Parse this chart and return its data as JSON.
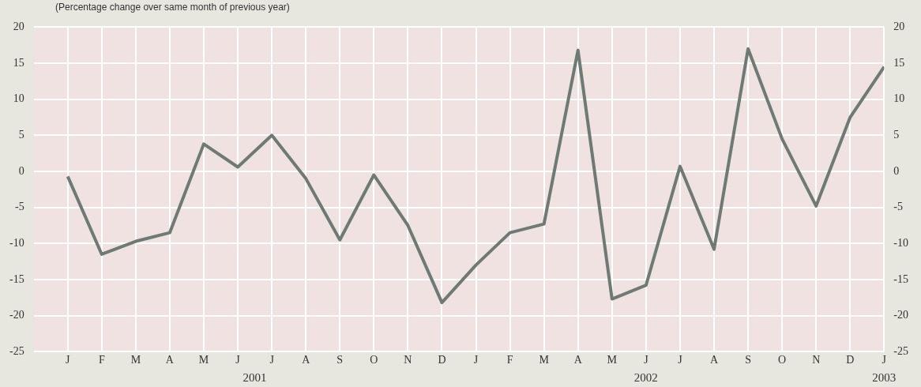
{
  "chart_data": {
    "type": "line",
    "subtitle": "(Percentage change over same month of previous year)",
    "categories": [
      "J",
      "F",
      "M",
      "A",
      "M",
      "J",
      "J",
      "A",
      "S",
      "O",
      "N",
      "D",
      "J",
      "F",
      "M",
      "A",
      "M",
      "J",
      "J",
      "A",
      "S",
      "O",
      "N",
      "D",
      "J"
    ],
    "series": [
      {
        "color": "#6e7a74",
        "values": [
          -0.7,
          -11.5,
          -9.7,
          -8.5,
          3.8,
          0.6,
          5,
          -1,
          -9.5,
          -0.5,
          -7.5,
          -18.2,
          -13,
          -8.5,
          -7.3,
          16.8,
          -17.7,
          -15.8,
          0.7,
          -10.8,
          17,
          4.5,
          -4.8,
          7.5,
          14.5
        ]
      }
    ],
    "ylim": [
      -25,
      20
    ],
    "yticks": [
      -25,
      -20,
      -15,
      -10,
      -5,
      0,
      5,
      10,
      15,
      20
    ],
    "y2lim": [
      -25,
      20
    ],
    "y2ticks": [
      -25,
      -20,
      -15,
      -10,
      -5,
      0,
      5,
      10,
      15,
      20
    ],
    "annotations": [
      "2001",
      "2002",
      "2003"
    ],
    "grid": true,
    "legend": false,
    "marker": "none",
    "line_style": "solid"
  }
}
